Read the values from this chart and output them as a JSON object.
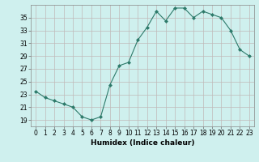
{
  "x": [
    0,
    1,
    2,
    3,
    4,
    5,
    6,
    7,
    8,
    9,
    10,
    11,
    12,
    13,
    14,
    15,
    16,
    17,
    18,
    19,
    20,
    21,
    22,
    23
  ],
  "y": [
    23.5,
    22.5,
    22.0,
    21.5,
    21.0,
    19.5,
    19.0,
    19.5,
    24.5,
    27.5,
    28.0,
    31.5,
    33.5,
    36.0,
    34.5,
    36.5,
    36.5,
    35.0,
    36.0,
    35.5,
    35.0,
    33.0,
    30.0,
    29.0
  ],
  "line_color": "#2d7a6a",
  "marker": "D",
  "marker_size": 2,
  "bg_color": "#cff0ee",
  "grid_color": "#c0b8b8",
  "xlabel": "Humidex (Indice chaleur)",
  "xlim": [
    -0.5,
    23.5
  ],
  "ylim": [
    18.0,
    37.0
  ],
  "yticks": [
    19,
    21,
    23,
    25,
    27,
    29,
    31,
    33,
    35
  ],
  "xticks": [
    0,
    1,
    2,
    3,
    4,
    5,
    6,
    7,
    8,
    9,
    10,
    11,
    12,
    13,
    14,
    15,
    16,
    17,
    18,
    19,
    20,
    21,
    22,
    23
  ],
  "label_fontsize": 6.5,
  "tick_fontsize": 5.5
}
